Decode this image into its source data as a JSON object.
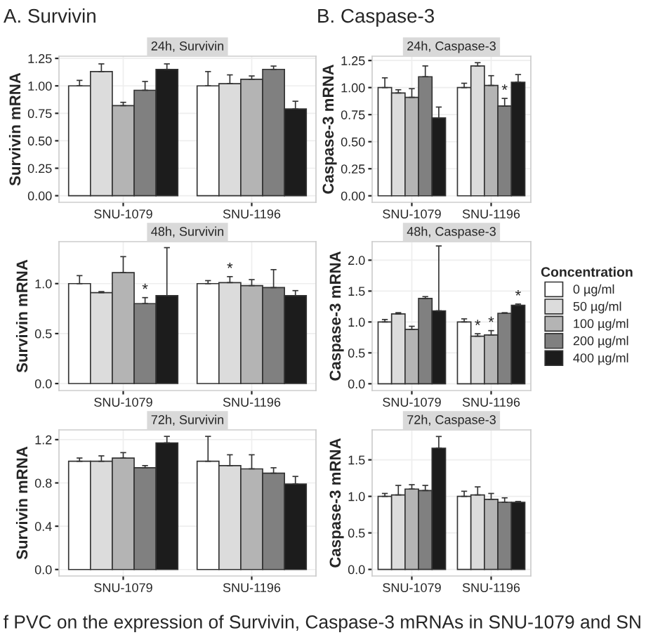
{
  "chart_data": [
    {
      "type": "bar",
      "title": "24h, Survivin",
      "ylabel": "Survivin mRNA",
      "categories": [
        "SNU-1079",
        "SNU-1196"
      ],
      "ylim": [
        -0.06,
        1.27
      ],
      "yticks": [
        {
          "value": 0,
          "label": "0.00"
        },
        {
          "value": 0.25,
          "label": "0.25"
        },
        {
          "value": 0.5,
          "label": "0.50"
        },
        {
          "value": 0.75,
          "label": "0.75"
        },
        {
          "value": 1,
          "label": "1.00"
        },
        {
          "value": 1.25,
          "label": "1.25"
        }
      ],
      "grid": true,
      "annotations": [
        "A. Survivin"
      ],
      "series": [
        {
          "color": "#ffffff",
          "values": [
            1.0,
            1.0
          ],
          "errors": [
            [
              1.0,
              1.05
            ],
            [
              1.0,
              1.13
            ]
          ]
        },
        {
          "color": "#dcdcdc",
          "values": [
            1.13,
            1.02
          ],
          "errors": [
            [
              1.13,
              1.2
            ],
            [
              1.02,
              1.1
            ]
          ]
        },
        {
          "color": "#b4b4b4",
          "values": [
            0.82,
            1.06
          ],
          "errors": [
            [
              0.82,
              0.85
            ],
            [
              1.06,
              1.09
            ]
          ]
        },
        {
          "color": "#808080",
          "values": [
            0.96,
            1.15
          ],
          "errors": [
            [
              0.96,
              1.04
            ],
            [
              1.15,
              1.18
            ]
          ]
        },
        {
          "color": "#1c1c1c",
          "values": [
            1.15,
            0.79
          ],
          "errors": [
            [
              1.15,
              1.2
            ],
            [
              0.79,
              0.86
            ]
          ]
        }
      ]
    },
    {
      "type": "bar",
      "title": "24h, Caspase-3",
      "ylabel": "Caspase-3 mRNA",
      "categories": [
        "SNU-1079",
        "SNU-1196"
      ],
      "ylim": [
        -0.06,
        1.29
      ],
      "yticks": [
        {
          "value": 0,
          "label": "0.00"
        },
        {
          "value": 0.25,
          "label": "0.25"
        },
        {
          "value": 0.5,
          "label": "0.50"
        },
        {
          "value": 0.75,
          "label": "0.75"
        },
        {
          "value": 1,
          "label": "1.00"
        },
        {
          "value": 1.25,
          "label": "1.25"
        }
      ],
      "grid": true,
      "annotations": [
        "B. Caspase-3"
      ],
      "series": [
        {
          "color": "#ffffff",
          "values": [
            1.0,
            1.0
          ],
          "errors": [
            [
              1.0,
              1.09
            ],
            [
              1.0,
              1.04
            ]
          ]
        },
        {
          "color": "#dcdcdc",
          "values": [
            0.95,
            1.2
          ],
          "errors": [
            [
              0.95,
              0.98
            ],
            [
              1.2,
              1.23
            ]
          ]
        },
        {
          "color": "#b4b4b4",
          "values": [
            0.91,
            1.02
          ],
          "errors": [
            [
              0.91,
              0.99
            ],
            [
              1.02,
              1.11
            ]
          ]
        },
        {
          "color": "#808080",
          "values": [
            1.1,
            0.83
          ],
          "errors": [
            [
              1.1,
              1.2
            ],
            [
              0.83,
              0.9
            ]
          ],
          "value_labels": [
            null,
            "*"
          ]
        },
        {
          "color": "#1c1c1c",
          "values": [
            0.72,
            1.05
          ],
          "errors": [
            [
              0.72,
              0.82
            ],
            [
              1.05,
              1.12
            ]
          ]
        }
      ]
    },
    {
      "type": "bar",
      "title": "48h, Survivin",
      "ylabel": "Survivin mRNA",
      "categories": [
        "SNU-1079",
        "SNU-1196"
      ],
      "ylim": [
        -0.07,
        1.42
      ],
      "yticks": [
        {
          "value": 0,
          "label": "0.0"
        },
        0.5,
        {
          "value": 1,
          "label": "1.0"
        }
      ],
      "grid": true,
      "series": [
        {
          "color": "#ffffff",
          "values": [
            1.0,
            1.0
          ],
          "errors": [
            [
              1.0,
              1.08
            ],
            [
              1.0,
              1.03
            ]
          ]
        },
        {
          "color": "#dcdcdc",
          "values": [
            0.91,
            1.01
          ],
          "errors": [
            [
              0.91,
              0.92
            ],
            [
              1.01,
              1.07
            ]
          ],
          "value_labels": [
            null,
            "*"
          ]
        },
        {
          "color": "#b4b4b4",
          "values": [
            1.11,
            0.98
          ],
          "errors": [
            [
              1.11,
              1.27
            ],
            [
              0.98,
              1.04
            ]
          ]
        },
        {
          "color": "#808080",
          "values": [
            0.8,
            0.96
          ],
          "errors": [
            [
              0.8,
              0.86
            ],
            [
              0.96,
              1.14
            ]
          ],
          "value_labels": [
            "*",
            null
          ]
        },
        {
          "color": "#1c1c1c",
          "values": [
            0.88,
            0.88
          ],
          "errors": [
            [
              0.88,
              1.36
            ],
            [
              0.88,
              0.93
            ]
          ]
        }
      ]
    },
    {
      "type": "bar",
      "title": "48h, Caspase-3",
      "ylabel": "Caspase-3 mRNA",
      "categories": [
        "SNU-1079",
        "SNU-1196"
      ],
      "ylim": [
        -0.11,
        2.3
      ],
      "yticks": [
        {
          "value": 0,
          "label": "0.0"
        },
        0.5,
        {
          "value": 1,
          "label": "1.0"
        },
        1.5,
        {
          "value": 2,
          "label": "2.0"
        }
      ],
      "grid": true,
      "legend": "right",
      "legend_title": "Concentration",
      "series": [
        {
          "name": "0 µg/ml",
          "color": "#ffffff",
          "values": [
            1.0,
            1.0
          ],
          "errors": [
            [
              1.0,
              1.04
            ],
            [
              1.0,
              1.05
            ]
          ]
        },
        {
          "name": "50 µg/ml",
          "color": "#dcdcdc",
          "values": [
            1.13,
            0.77
          ],
          "errors": [
            [
              1.13,
              1.15
            ],
            [
              0.77,
              0.81
            ]
          ],
          "value_labels": [
            null,
            "*"
          ]
        },
        {
          "name": "100 µg/ml",
          "color": "#b4b4b4",
          "values": [
            0.88,
            0.79
          ],
          "errors": [
            [
              0.88,
              0.93
            ],
            [
              0.79,
              0.86
            ]
          ],
          "value_labels": [
            null,
            "*"
          ]
        },
        {
          "name": "200 µg/ml",
          "color": "#808080",
          "values": [
            1.38,
            1.14
          ],
          "errors": [
            [
              1.38,
              1.41
            ],
            [
              1.14,
              1.15
            ]
          ]
        },
        {
          "name": "400 µg/ml",
          "color": "#1c1c1c",
          "values": [
            1.18,
            1.27
          ],
          "errors": [
            [
              1.18,
              2.23
            ],
            [
              1.27,
              1.29
            ]
          ],
          "value_labels": [
            null,
            "*"
          ]
        }
      ]
    },
    {
      "type": "bar",
      "title": "72h, Survivin",
      "ylabel": "Survivin mRNA",
      "categories": [
        "SNU-1079",
        "SNU-1196"
      ],
      "ylim": [
        -0.06,
        1.29
      ],
      "yticks": [
        {
          "value": 0,
          "label": "0.0"
        },
        0.4,
        0.8,
        1.2
      ],
      "grid": true,
      "annotations": [
        "f PVC on the expression of Survivin, Caspase-3 mRNAs in SNU-1079 and SN"
      ],
      "series": [
        {
          "color": "#ffffff",
          "values": [
            1.0,
            1.0
          ],
          "errors": [
            [
              1.0,
              1.03
            ],
            [
              1.0,
              1.23
            ]
          ]
        },
        {
          "color": "#dcdcdc",
          "values": [
            1.0,
            0.96
          ],
          "errors": [
            [
              1.0,
              1.05
            ],
            [
              0.96,
              1.06
            ]
          ]
        },
        {
          "color": "#b4b4b4",
          "values": [
            1.03,
            0.93
          ],
          "errors": [
            [
              1.03,
              1.08
            ],
            [
              0.93,
              1.06
            ]
          ]
        },
        {
          "color": "#808080",
          "values": [
            0.94,
            0.89
          ],
          "errors": [
            [
              0.94,
              0.96
            ],
            [
              0.89,
              0.94
            ]
          ]
        },
        {
          "color": "#1c1c1c",
          "values": [
            1.17,
            0.79
          ],
          "errors": [
            [
              1.17,
              1.23
            ],
            [
              0.79,
              0.86
            ]
          ]
        }
      ]
    },
    {
      "type": "bar",
      "title": "72h, Caspase-3",
      "ylabel": "Caspase-3 mRNA",
      "categories": [
        "SNU-1079",
        "SNU-1196"
      ],
      "ylim": [
        -0.09,
        1.91
      ],
      "yticks": [
        {
          "value": 0,
          "label": "0.0"
        },
        0.5,
        {
          "value": 1,
          "label": "1.0"
        },
        1.5
      ],
      "grid": true,
      "series": [
        {
          "color": "#ffffff",
          "values": [
            1.0,
            1.0
          ],
          "errors": [
            [
              1.0,
              1.04
            ],
            [
              1.0,
              1.07
            ]
          ]
        },
        {
          "color": "#dcdcdc",
          "values": [
            1.02,
            1.02
          ],
          "errors": [
            [
              1.02,
              1.15
            ],
            [
              1.02,
              1.13
            ]
          ]
        },
        {
          "color": "#b4b4b4",
          "values": [
            1.1,
            0.96
          ],
          "errors": [
            [
              1.1,
              1.16
            ],
            [
              0.96,
              1.04
            ]
          ]
        },
        {
          "color": "#808080",
          "values": [
            1.08,
            0.92
          ],
          "errors": [
            [
              1.08,
              1.15
            ],
            [
              0.92,
              0.98
            ]
          ]
        },
        {
          "color": "#1c1c1c",
          "values": [
            1.66,
            0.92
          ],
          "errors": [
            [
              1.66,
              1.82
            ],
            [
              0.92,
              0.93
            ]
          ]
        }
      ]
    }
  ]
}
